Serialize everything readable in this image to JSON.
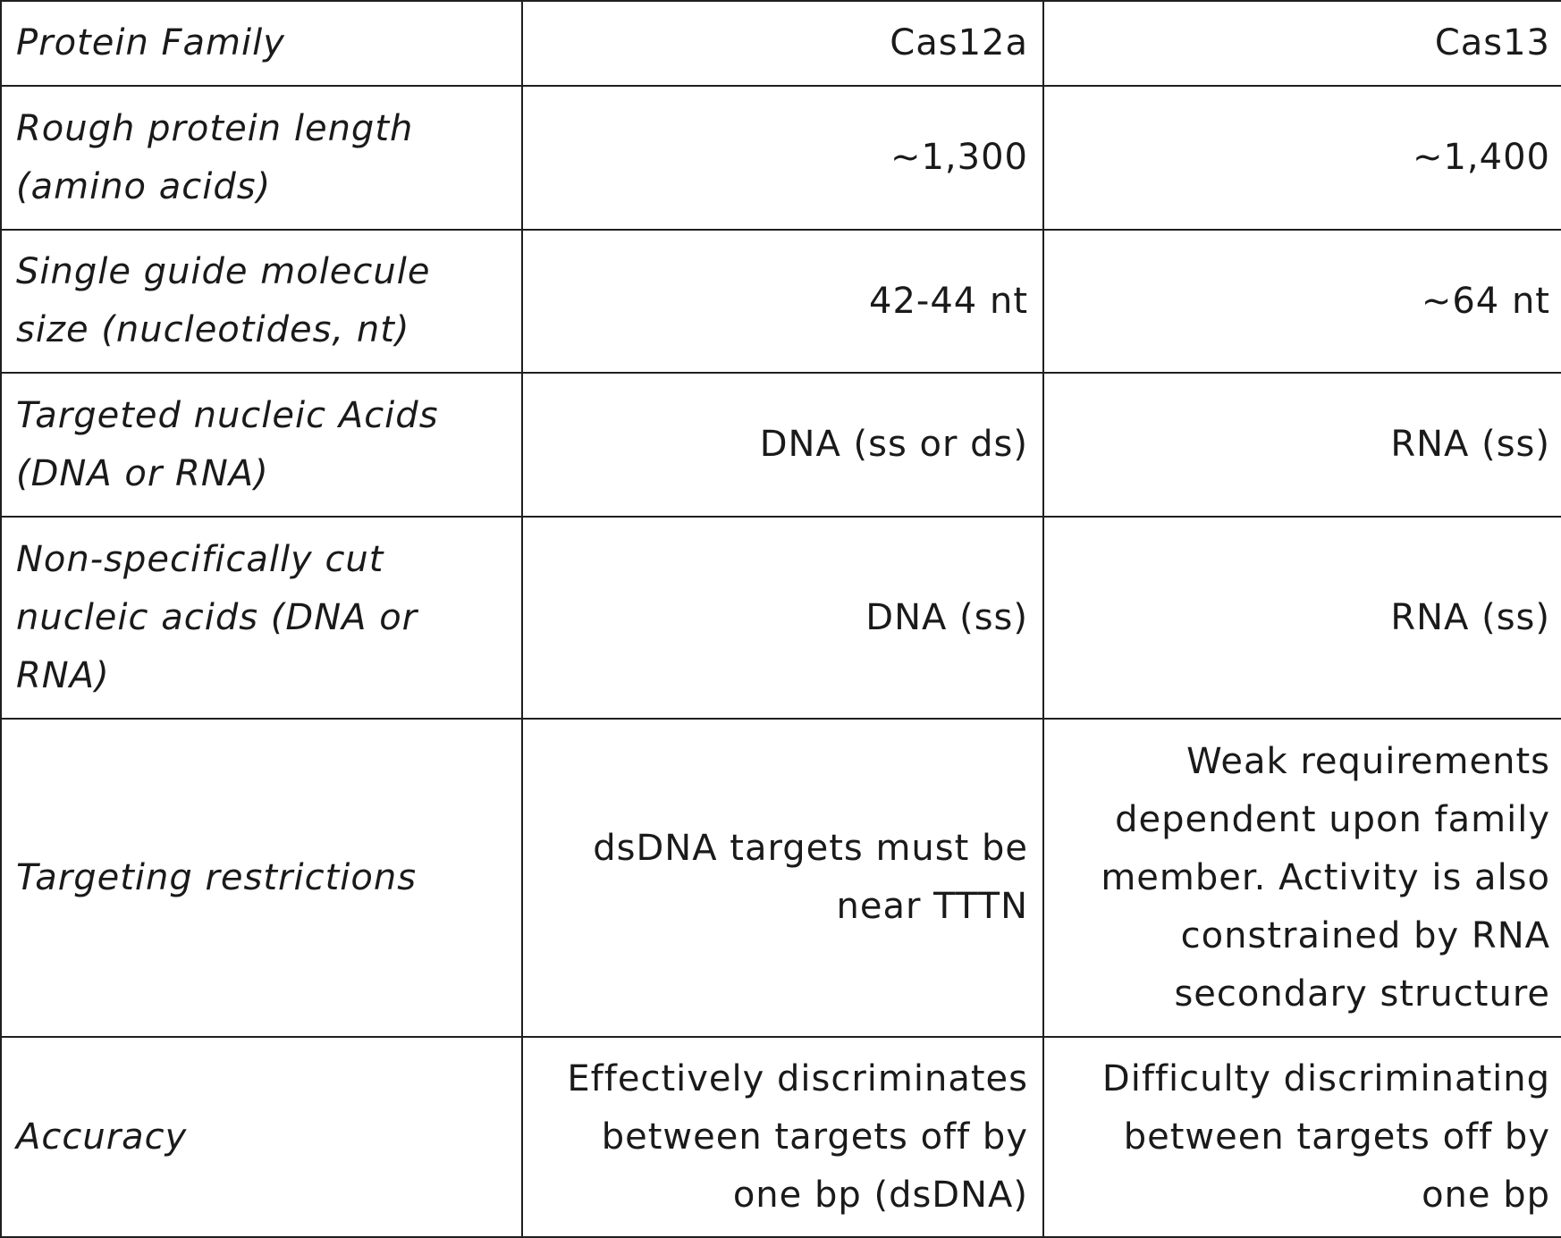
{
  "table": {
    "header": {
      "label": "Protein Family",
      "col1": "Cas12a",
      "col2": "Cas13"
    },
    "rows": [
      {
        "label": "Rough protein length (amino acids)",
        "col1": "~1,300",
        "col2": "~1,400"
      },
      {
        "label": "Single guide molecule size (nucleotides, nt)",
        "col1": "42-44 nt",
        "col2": "~64 nt"
      },
      {
        "label": "Targeted nucleic Acids (DNA or RNA)",
        "col1": "DNA (ss or ds)",
        "col2": "RNA (ss)"
      },
      {
        "label": "Non-specifically cut nucleic acids (DNA or RNA)",
        "col1": "DNA (ss)",
        "col2": "RNA (ss)"
      },
      {
        "label": "Targeting restrictions",
        "col1": "dsDNA targets must be near TTTN",
        "col2": "Weak requirements dependent upon family member. Activity is also constrained by RNA secondary structure"
      },
      {
        "label": "Accuracy",
        "col1": "Effectively discriminates between targets off by one bp (dsDNA)",
        "col2": "Difficulty discriminating between targets off by one bp"
      }
    ]
  }
}
